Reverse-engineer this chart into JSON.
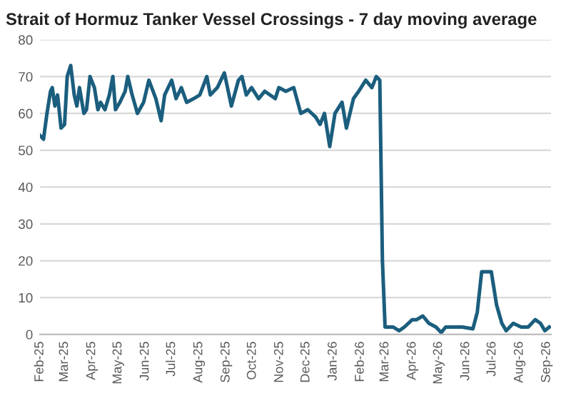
{
  "chart_data": {
    "type": "line",
    "title": "Strait of Hormuz Tanker Vessel Crossings - 7 day moving average",
    "x": [
      "2025-02-01",
      "2025-02-05",
      "2025-02-09",
      "2025-02-13",
      "2025-02-15",
      "2025-02-18",
      "2025-02-21",
      "2025-02-25",
      "2025-03-01",
      "2025-03-04",
      "2025-03-08",
      "2025-03-12",
      "2025-03-15",
      "2025-03-18",
      "2025-03-23",
      "2025-03-26",
      "2025-03-30",
      "2025-04-04",
      "2025-04-08",
      "2025-04-11",
      "2025-04-16",
      "2025-04-21",
      "2025-04-25",
      "2025-04-28",
      "2025-05-03",
      "2025-05-09",
      "2025-05-12",
      "2025-05-17",
      "2025-05-23",
      "2025-05-30",
      "2025-06-05",
      "2025-06-13",
      "2025-06-19",
      "2025-06-23",
      "2025-07-01",
      "2025-07-06",
      "2025-07-12",
      "2025-07-18",
      "2025-07-26",
      "2025-08-02",
      "2025-08-10",
      "2025-08-14",
      "2025-08-22",
      "2025-08-30",
      "2025-09-07",
      "2025-09-15",
      "2025-09-19",
      "2025-09-24",
      "2025-09-30",
      "2025-10-08",
      "2025-10-15",
      "2025-10-27",
      "2025-10-31",
      "2025-11-08",
      "2025-11-17",
      "2025-11-25",
      "2025-12-03",
      "2025-12-12",
      "2025-12-17",
      "2025-12-22",
      "2025-12-28",
      "2026-01-03",
      "2026-01-11",
      "2026-01-16",
      "2026-01-24",
      "2026-01-30",
      "2026-02-07",
      "2026-02-14",
      "2026-02-19",
      "2026-02-23",
      "2026-02-26",
      "2026-03-01",
      "2026-03-10",
      "2026-03-17",
      "2026-03-23",
      "2026-04-01",
      "2026-04-06",
      "2026-04-13",
      "2026-04-20",
      "2026-04-28",
      "2026-05-04",
      "2026-05-09",
      "2026-05-18",
      "2026-05-28",
      "2026-06-09",
      "2026-06-14",
      "2026-06-19",
      "2026-06-25",
      "2026-06-30",
      "2026-07-06",
      "2026-07-12",
      "2026-07-17",
      "2026-07-25",
      "2026-08-03",
      "2026-08-11",
      "2026-08-19",
      "2026-08-25",
      "2026-08-30",
      "2026-09-04"
    ],
    "series": [
      {
        "color": "#1b5e7e",
        "values": [
          54,
          53,
          60,
          66,
          67,
          62,
          65,
          56,
          57,
          70,
          73,
          65,
          62,
          67,
          60,
          61,
          70,
          67,
          61,
          63,
          61,
          65,
          70,
          61,
          63,
          66,
          70,
          65,
          60,
          63,
          69,
          64,
          58,
          65,
          69,
          64,
          67,
          63,
          64,
          65,
          70,
          65,
          67,
          71,
          62,
          69,
          70,
          65,
          67,
          64,
          66,
          64,
          67,
          66,
          67,
          60,
          61,
          59,
          57,
          60,
          51,
          60,
          63,
          56,
          64,
          66,
          69,
          67,
          70,
          69,
          20,
          2,
          2,
          1,
          2,
          4,
          4,
          5,
          3,
          2,
          0.5,
          2,
          2,
          2,
          1.5,
          6,
          17,
          17,
          17,
          8,
          3,
          1,
          3,
          2,
          2,
          4,
          3,
          1,
          2
        ]
      }
    ],
    "xlim": [
      "2025-02-01",
      "2026-09-06"
    ],
    "xticks": [
      {
        "value": "2025-02-01",
        "label": "Feb-25"
      },
      {
        "value": "2025-03-01",
        "label": "Mar-25"
      },
      {
        "value": "2025-04-01",
        "label": "Apr-25"
      },
      {
        "value": "2025-05-01",
        "label": "May-25"
      },
      {
        "value": "2025-06-01",
        "label": "Jun-25"
      },
      {
        "value": "2025-07-01",
        "label": "Jul-25"
      },
      {
        "value": "2025-08-01",
        "label": "Aug-25"
      },
      {
        "value": "2025-09-01",
        "label": "Sep-25"
      },
      {
        "value": "2025-10-01",
        "label": "Oct-25"
      },
      {
        "value": "2025-11-01",
        "label": "Nov-25"
      },
      {
        "value": "2025-12-01",
        "label": "Dec-25"
      },
      {
        "value": "2026-01-01",
        "label": "Jan-26"
      },
      {
        "value": "2026-02-01",
        "label": "Feb-26"
      },
      {
        "value": "2026-03-01",
        "label": "Mar-26"
      },
      {
        "value": "2026-04-01",
        "label": "Apr-26"
      },
      {
        "value": "2026-05-01",
        "label": "May-26"
      },
      {
        "value": "2026-06-01",
        "label": "Jun-26"
      },
      {
        "value": "2026-07-01",
        "label": "Jul-26"
      },
      {
        "value": "2026-08-01",
        "label": "Aug-26"
      },
      {
        "value": "2026-09-01",
        "label": "Sep-26"
      }
    ],
    "ylim": [
      0,
      80
    ],
    "yticks": [
      0,
      10,
      20,
      30,
      40,
      50,
      60,
      70,
      80
    ],
    "grid": "y",
    "legend": false,
    "marker": "none",
    "line_style": "solid"
  }
}
